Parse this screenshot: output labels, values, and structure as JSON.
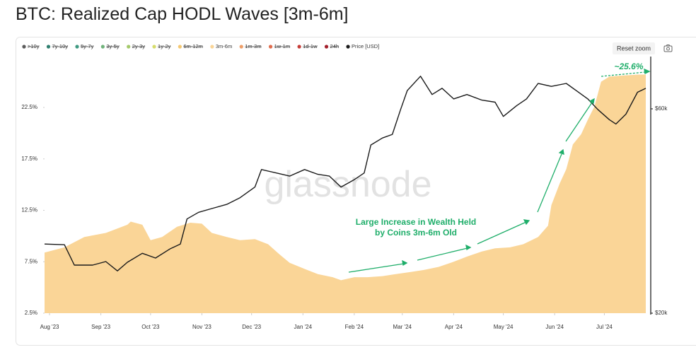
{
  "chart_data": {
    "type": "area",
    "title": "BTC: Realized Cap HODL Waves [3m-6m]",
    "watermark": "glassnode",
    "reset_zoom": "Reset zoom",
    "annotations": [
      {
        "text": "Large Increase in Wealth Held"
      },
      {
        "text": "by Coins 3m-6m Old"
      },
      {
        "text": "~25.6%"
      }
    ],
    "xlim": [
      -3,
      363
    ],
    "xticks": [
      {
        "value": 0,
        "label": "Aug '23"
      },
      {
        "value": 31,
        "label": "Sep '23"
      },
      {
        "value": 61,
        "label": "Oct '23"
      },
      {
        "value": 92,
        "label": "Nov '23"
      },
      {
        "value": 122,
        "label": "Dec '23"
      },
      {
        "value": 153,
        "label": "Jan '24"
      },
      {
        "value": 184,
        "label": "Feb '24"
      },
      {
        "value": 213,
        "label": "Mar '24"
      },
      {
        "value": 244,
        "label": "Apr '24"
      },
      {
        "value": 274,
        "label": "May '24"
      },
      {
        "value": 305,
        "label": "Jun '24"
      },
      {
        "value": 335,
        "label": "Jul '24"
      }
    ],
    "ylim": [
      2.5,
      26.9
    ],
    "yticks": [
      {
        "value": 2.5,
        "label": "2.5%"
      },
      {
        "value": 7.5,
        "label": "7.5%"
      },
      {
        "value": 12.5,
        "label": "12.5%"
      },
      {
        "value": 17.5,
        "label": "17.5%"
      },
      {
        "value": 22.5,
        "label": "22.5%"
      }
    ],
    "y2lim": [
      20000,
      77100
    ],
    "y2_log": true,
    "y2ticks": [
      {
        "value": 20000,
        "label": "$20k"
      },
      {
        "value": 60000,
        "label": "$60k"
      }
    ],
    "grid": false,
    "series": [
      {
        "name": ">10y",
        "color": "#5b5b5b",
        "hidden": true
      },
      {
        "name": "7y-10y",
        "color": "#2f7f6f",
        "hidden": true
      },
      {
        "name": "5y-7y",
        "color": "#3f9a82",
        "hidden": true
      },
      {
        "name": "3y-5y",
        "color": "#6fb27a",
        "hidden": true
      },
      {
        "name": "2y-3y",
        "color": "#a4c96a",
        "hidden": true
      },
      {
        "name": "1y-2y",
        "color": "#d6dc6b",
        "hidden": true
      },
      {
        "name": "6m-12m",
        "color": "#f4c770",
        "hidden": true
      },
      {
        "name": "3m-6m",
        "color": "#fad597",
        "hidden": false,
        "x": [
          -3,
          9,
          21,
          34,
          47,
          49,
          56,
          61,
          68,
          77,
          85,
          92,
          98,
          107,
          115,
          124,
          132,
          139,
          145,
          154,
          162,
          171,
          176,
          184,
          192,
          201,
          209,
          218,
          226,
          235,
          244,
          252,
          261,
          269,
          278,
          286,
          295,
          301,
          303,
          308,
          312,
          316,
          321,
          325,
          329,
          333,
          338,
          346,
          355,
          360
        ],
        "values": [
          8.4,
          8.9,
          9.9,
          10.3,
          11.1,
          11.4,
          11.1,
          9.6,
          9.9,
          10.9,
          11.3,
          11.2,
          10.3,
          9.9,
          9.6,
          9.7,
          9.2,
          8.2,
          7.4,
          6.8,
          6.3,
          6.0,
          5.7,
          6.0,
          6.0,
          6.1,
          6.3,
          6.5,
          6.7,
          7.0,
          7.5,
          8.0,
          8.5,
          8.8,
          8.9,
          9.2,
          9.9,
          11.0,
          13.0,
          15.1,
          16.5,
          18.9,
          19.9,
          21.3,
          22.6,
          25.0,
          25.5,
          25.6,
          25.7,
          25.7
        ]
      },
      {
        "name": "1m-3m",
        "color": "#ee9e68",
        "hidden": true
      },
      {
        "name": "1w-1m",
        "color": "#e06c4d",
        "hidden": true
      },
      {
        "name": "1d-1w",
        "color": "#c63d38",
        "hidden": true
      },
      {
        "name": "24h",
        "color": "#a3202c",
        "hidden": true
      },
      {
        "name": "Price [USD]",
        "color": "#1a1a1a",
        "hidden": false,
        "kind": "line",
        "axis": "y2",
        "x": [
          -3,
          9,
          15,
          26,
          34,
          41,
          47,
          56,
          64,
          73,
          79,
          83,
          90,
          98,
          107,
          115,
          124,
          128,
          137,
          145,
          154,
          162,
          169,
          176,
          184,
          190,
          194,
          201,
          207,
          212,
          216,
          224,
          231,
          237,
          244,
          252,
          261,
          269,
          274,
          282,
          288,
          295,
          303,
          312,
          318,
          325,
          331,
          338,
          342,
          348,
          355,
          360
        ],
        "values": [
          29000,
          28900,
          25900,
          25900,
          26400,
          25100,
          26300,
          27600,
          26900,
          28300,
          29000,
          33200,
          34400,
          35100,
          35900,
          37200,
          39400,
          43300,
          42500,
          41800,
          43300,
          42200,
          41800,
          39400,
          41000,
          42500,
          49400,
          51300,
          52300,
          59800,
          66200,
          71500,
          64800,
          67000,
          63300,
          64800,
          62900,
          62200,
          57600,
          61000,
          63300,
          68800,
          67700,
          68800,
          66200,
          63300,
          59800,
          56600,
          55300,
          58300,
          65600,
          67000
        ]
      }
    ]
  }
}
